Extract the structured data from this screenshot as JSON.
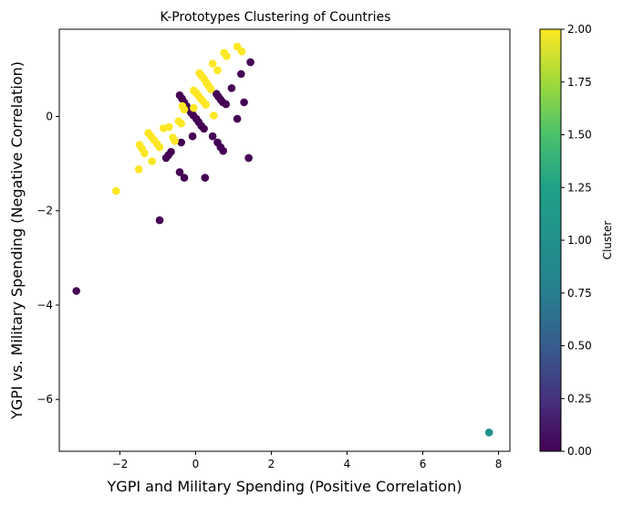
{
  "chart_data": {
    "type": "scatter",
    "title": "K-Prototypes Clustering of Countries",
    "xlabel": "YGPI and Military Spending (Positive Correlation)",
    "ylabel": "YGPI vs. Military Spending (Negative Correlation)",
    "xlim": [
      -3.6,
      8.3
    ],
    "ylim": [
      -7.1,
      1.85
    ],
    "xticks": [
      -2,
      0,
      2,
      4,
      6,
      8
    ],
    "yticks": [
      -6,
      -4,
      -2,
      0
    ],
    "grid": false,
    "colorbar": {
      "label": "Cluster",
      "min": 0,
      "max": 2,
      "ticks": [
        "0.00",
        "0.25",
        "0.50",
        "0.75",
        "1.00",
        "1.25",
        "1.50",
        "1.75",
        "2.00"
      ],
      "colormap": "viridis"
    },
    "series": [
      {
        "cluster": 0,
        "color": "#440154",
        "points": [
          [
            -0.42,
            0.45
          ],
          [
            -0.36,
            0.38
          ],
          [
            -0.3,
            0.3
          ],
          [
            -0.24,
            0.22
          ],
          [
            -0.18,
            0.15
          ],
          [
            -0.12,
            0.08
          ],
          [
            -0.06,
            0.02
          ],
          [
            0.02,
            -0.05
          ],
          [
            0.08,
            -0.12
          ],
          [
            0.15,
            -0.2
          ],
          [
            0.22,
            -0.26
          ],
          [
            -0.1,
            0.12
          ],
          [
            0.55,
            0.48
          ],
          [
            0.6,
            0.42
          ],
          [
            0.66,
            0.36
          ],
          [
            0.72,
            0.3
          ],
          [
            0.8,
            0.26
          ],
          [
            0.95,
            0.6
          ],
          [
            1.2,
            0.9
          ],
          [
            1.45,
            1.15
          ],
          [
            1.28,
            0.3
          ],
          [
            1.1,
            -0.05
          ],
          [
            0.45,
            -0.42
          ],
          [
            0.58,
            -0.55
          ],
          [
            0.66,
            -0.65
          ],
          [
            0.73,
            -0.73
          ],
          [
            1.4,
            -0.88
          ],
          [
            -0.38,
            -0.55
          ],
          [
            -0.65,
            -0.75
          ],
          [
            -0.72,
            -0.82
          ],
          [
            -0.78,
            -0.88
          ],
          [
            -0.08,
            -0.42
          ],
          [
            0.25,
            -1.3
          ],
          [
            -0.42,
            -1.18
          ],
          [
            -0.3,
            -1.3
          ],
          [
            -0.95,
            -2.2
          ],
          [
            -3.15,
            -3.7
          ]
        ]
      },
      {
        "cluster": 1,
        "color": "#21918c",
        "points": [
          [
            7.75,
            -6.7
          ]
        ]
      },
      {
        "cluster": 2,
        "color": "#fde725",
        "points": [
          [
            1.1,
            1.48
          ],
          [
            1.22,
            1.38
          ],
          [
            0.75,
            1.35
          ],
          [
            0.82,
            1.28
          ],
          [
            0.45,
            1.12
          ],
          [
            0.58,
            0.98
          ],
          [
            0.1,
            0.92
          ],
          [
            0.16,
            0.86
          ],
          [
            0.22,
            0.8
          ],
          [
            0.28,
            0.72
          ],
          [
            0.34,
            0.65
          ],
          [
            0.4,
            0.58
          ],
          [
            -0.05,
            0.55
          ],
          [
            0.01,
            0.5
          ],
          [
            0.07,
            0.45
          ],
          [
            0.13,
            0.38
          ],
          [
            0.2,
            0.32
          ],
          [
            0.27,
            0.25
          ],
          [
            -0.35,
            0.22
          ],
          [
            -0.3,
            0.15
          ],
          [
            -0.45,
            -0.1
          ],
          [
            -0.38,
            -0.15
          ],
          [
            -0.05,
            0.18
          ],
          [
            0.48,
            0.02
          ],
          [
            -0.7,
            -0.22
          ],
          [
            -0.85,
            -0.25
          ],
          [
            -0.6,
            -0.45
          ],
          [
            -0.55,
            -0.52
          ],
          [
            -1.25,
            -0.35
          ],
          [
            -1.18,
            -0.42
          ],
          [
            -1.1,
            -0.5
          ],
          [
            -1.02,
            -0.58
          ],
          [
            -0.95,
            -0.65
          ],
          [
            -1.48,
            -0.6
          ],
          [
            -1.42,
            -0.68
          ],
          [
            -1.35,
            -0.78
          ],
          [
            -1.15,
            -0.95
          ],
          [
            -1.5,
            -1.12
          ],
          [
            -2.1,
            -1.58
          ]
        ]
      }
    ]
  }
}
